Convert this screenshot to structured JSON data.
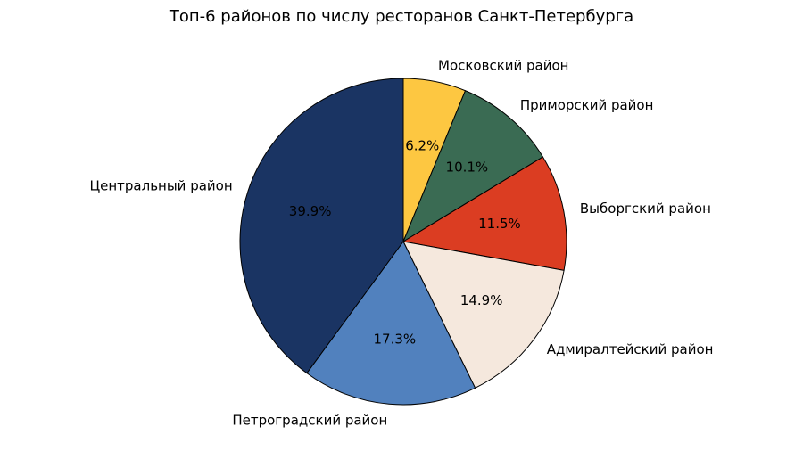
{
  "chart_data": {
    "type": "pie",
    "title": "Топ-6 районов по числу ресторанов Санкт-Петербурга",
    "start_angle_deg": 90,
    "direction": "clockwise",
    "slices": [
      {
        "label": "Московский район",
        "value": 6.2,
        "pct_label": "6.2%",
        "color": "#fdc741"
      },
      {
        "label": "Приморский район",
        "value": 10.1,
        "pct_label": "10.1%",
        "color": "#3a6b53"
      },
      {
        "label": "Выборгский район",
        "value": 11.5,
        "pct_label": "11.5%",
        "color": "#db3d22"
      },
      {
        "label": "Адмиралтейский район",
        "value": 14.9,
        "pct_label": "14.9%",
        "color": "#f5e8dd"
      },
      {
        "label": "Петроградский район",
        "value": 17.3,
        "pct_label": "17.3%",
        "color": "#5181be"
      },
      {
        "label": "Центральный район",
        "value": 39.9,
        "pct_label": "39.9%",
        "color": "#1a3463"
      }
    ]
  }
}
